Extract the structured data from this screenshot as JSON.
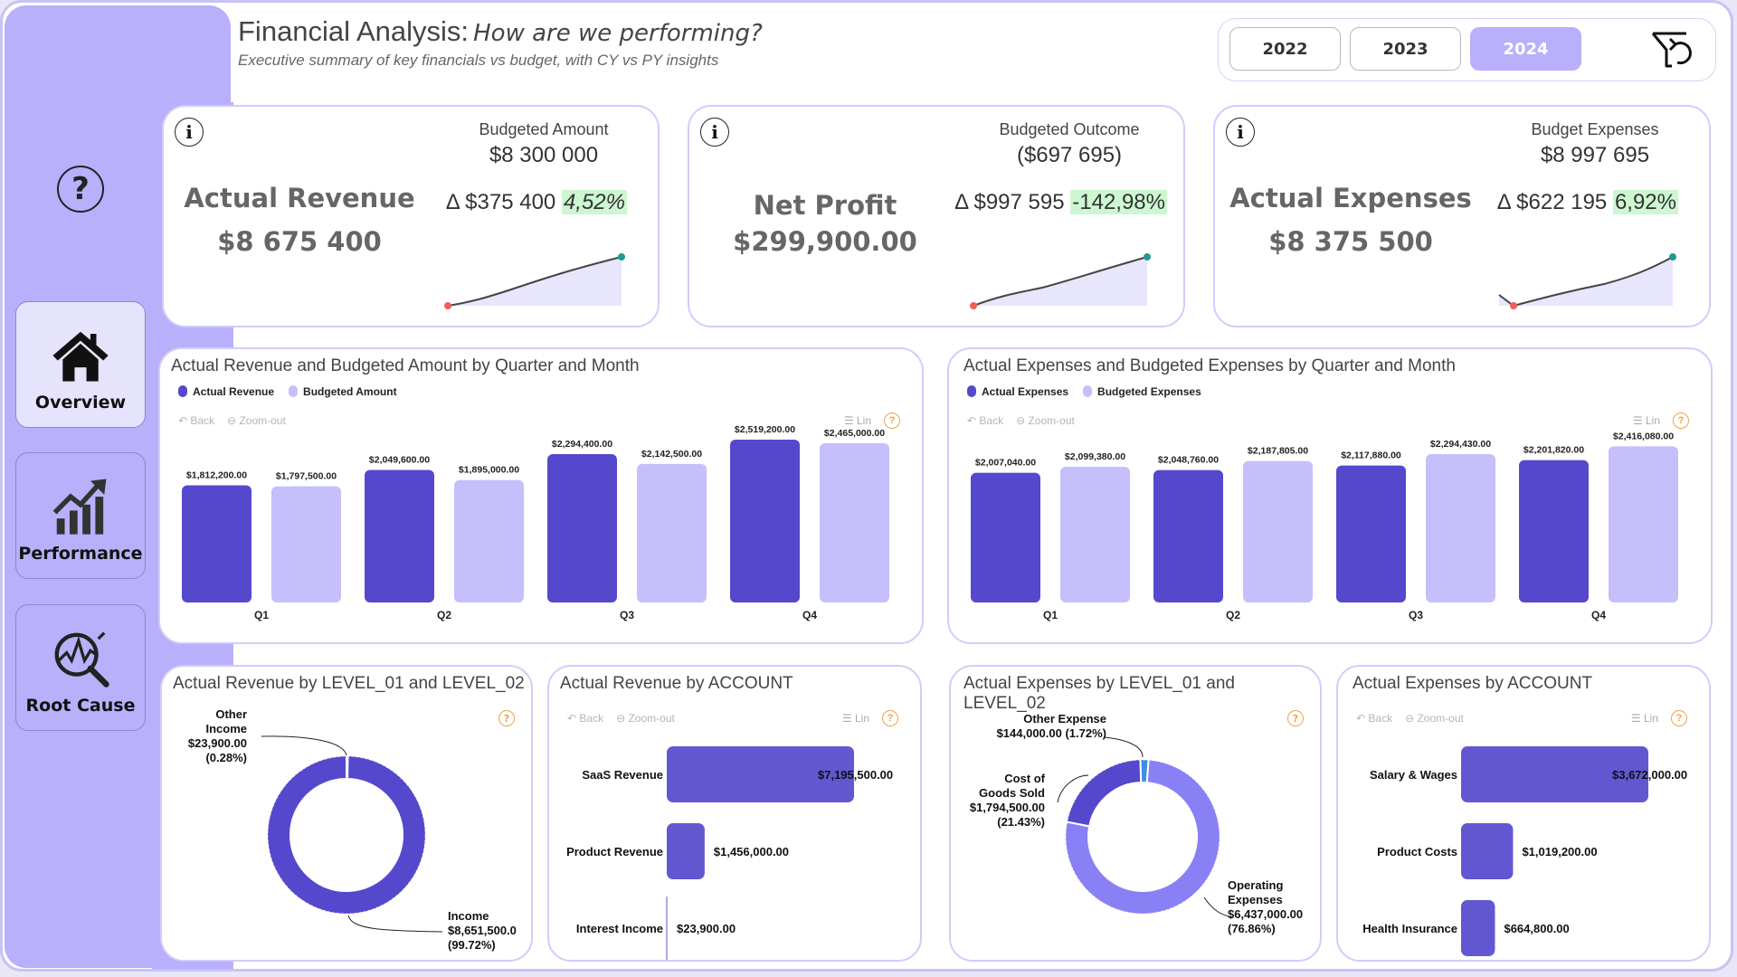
{
  "header": {
    "title": "Financial Analysis:",
    "question": "How are we performing?",
    "subtitle": "Executive summary of key financials vs budget, with CY vs PY insights"
  },
  "sidebar": {
    "help_icon": "question-circle-icon",
    "items": [
      {
        "label": "Overview",
        "icon": "home-icon",
        "active": true
      },
      {
        "label": "Performance",
        "icon": "growth-chart-icon",
        "active": false
      },
      {
        "label": "Root Cause",
        "icon": "magnify-analysis-icon",
        "active": false
      }
    ]
  },
  "year_slicer": {
    "options": [
      "2022",
      "2023",
      "2024"
    ],
    "selected": "2024",
    "reset_icon": "filter-reset-icon"
  },
  "kpis": [
    {
      "title": "Actual Revenue",
      "value": "$8 675 400",
      "budget_label": "Budgeted Amount",
      "budget_value": "$8 300 000",
      "delta_prefix": "Δ",
      "delta_value": "$375 400",
      "delta_pct": "4,52%",
      "pct_italic": true
    },
    {
      "title": "Net Profit",
      "value": "$299,900.00",
      "budget_label": "Budgeted Outcome",
      "budget_value": "($697 695)",
      "delta_prefix": "Δ",
      "delta_value": "$997 595",
      "delta_pct": "-142,98%",
      "pct_italic": false
    },
    {
      "title": "Actual Expenses",
      "value": "$8 375 500",
      "budget_label": "Budget Expenses",
      "budget_value": "$8 997 695",
      "delta_prefix": "Δ",
      "delta_value": "$622 195",
      "delta_pct": "6,92%",
      "pct_italic": false
    }
  ],
  "colors": {
    "primary": "#5548cc",
    "light": "#c5bffb",
    "op_expense": "#8a80f5",
    "other_expense": "#3a8fe6",
    "accent_bg": "#b8b0fb",
    "positive_bg": "#cdf7d1",
    "help_orange": "#f0a347"
  },
  "toolbar": {
    "back": "Back",
    "zoom_out": "Zoom-out",
    "scale": "Lin"
  },
  "chart_data": [
    {
      "type": "bar",
      "title": "Actual Revenue and Budgeted Amount by Quarter and Month",
      "categories": [
        "Q1",
        "Q2",
        "Q3",
        "Q4"
      ],
      "series": [
        {
          "name": "Actual Revenue",
          "values": [
            1812200,
            2049600,
            2294400,
            2519200
          ],
          "labels": [
            "$1,812,200.00",
            "$2,049,600.00",
            "$2,294,400.00",
            "$2,519,200.00"
          ]
        },
        {
          "name": "Budgeted Amount",
          "values": [
            1797500,
            1895000,
            2142500,
            2465000
          ],
          "labels": [
            "$1,797,500.00",
            "$1,895,000.00",
            "$2,142,500.00",
            "$2,465,000.00"
          ]
        }
      ],
      "legend": "top-left"
    },
    {
      "type": "bar",
      "title": "Actual Expenses and Budgeted Expenses by Quarter and Month",
      "categories": [
        "Q1",
        "Q2",
        "Q3",
        "Q4"
      ],
      "series": [
        {
          "name": "Actual Expenses",
          "values": [
            2007040,
            2048760,
            2117880,
            2201820
          ],
          "labels": [
            "$2,007,040.00",
            "$2,048,760.00",
            "$2,117,880.00",
            "$2,201,820.00"
          ]
        },
        {
          "name": "Budgeted Expenses",
          "values": [
            2099380,
            2187805,
            2294430,
            2416080
          ],
          "labels": [
            "$2,099,380.00",
            "$2,187,805.00",
            "$2,294,430.00",
            "$2,416,080.00"
          ]
        }
      ],
      "legend": "top-left"
    },
    {
      "type": "pie",
      "title": "Actual Revenue by LEVEL_01 and LEVEL_02",
      "slices": [
        {
          "name": "Other Income",
          "value": 23900,
          "label": "$23,900.00",
          "pct": "(0.28%)"
        },
        {
          "name": "Income",
          "value": 8651500,
          "label": "$8,651,500.0",
          "pct": "(99.72%)"
        }
      ]
    },
    {
      "type": "bar",
      "orientation": "horizontal",
      "title": "Actual Revenue by ACCOUNT",
      "categories": [
        "SaaS Revenue",
        "Product Revenue",
        "Interest Income"
      ],
      "values": [
        7195500,
        1456000,
        23900
      ],
      "labels": [
        "$7,195,500.00",
        "$1,456,000.00",
        "$23,900.00"
      ]
    },
    {
      "type": "pie",
      "title": "Actual Expenses by LEVEL_01 and LEVEL_02",
      "slices": [
        {
          "name": "Other Expense",
          "value": 144000,
          "label": "$144,000.00",
          "pct": "(1.72%)"
        },
        {
          "name": "Operating Expenses",
          "value": 6437000,
          "label": "$6,437,000.00",
          "pct": "(76.86%)"
        },
        {
          "name": "Cost of Goods Sold",
          "value": 1794500,
          "label": "$1,794,500.00",
          "pct": "(21.43%)"
        }
      ]
    },
    {
      "type": "bar",
      "orientation": "horizontal",
      "title": "Actual Expenses by ACCOUNT",
      "categories": [
        "Salary & Wages",
        "Product Costs",
        "Health Insurance"
      ],
      "values": [
        3672000,
        1019200,
        664800
      ],
      "labels": [
        "$3,672,000.00",
        "$1,019,200.00",
        "$664,800.00"
      ]
    }
  ]
}
